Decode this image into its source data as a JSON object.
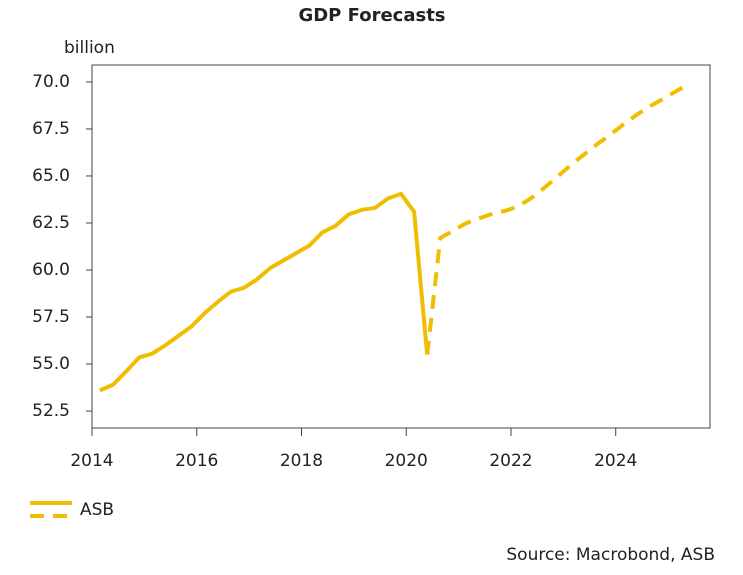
{
  "chart_data": {
    "type": "line",
    "title": "GDP Forecasts",
    "y_unit": "billion",
    "source": "Source: Macrobond, ASB",
    "x": [
      2014.15,
      2014.4,
      2014.65,
      2014.9,
      2015.15,
      2015.4,
      2015.65,
      2015.9,
      2016.15,
      2016.4,
      2016.65,
      2016.9,
      2017.15,
      2017.4,
      2017.65,
      2017.9,
      2018.15,
      2018.4,
      2018.65,
      2018.9,
      2019.15,
      2019.4,
      2019.65,
      2019.9,
      2020.15,
      2020.4,
      2020.65,
      2020.9,
      2021.15,
      2021.4,
      2021.65,
      2021.9,
      2022.15,
      2022.4,
      2022.65,
      2022.9,
      2023.15,
      2023.4,
      2023.65,
      2023.9,
      2024.15,
      2024.4,
      2024.65,
      2024.9,
      2025.15,
      2025.4
    ],
    "series": [
      {
        "name": "ASB",
        "color": "#f0be00",
        "values": [
          53.6,
          53.9,
          54.6,
          55.35,
          55.55,
          56.0,
          56.5,
          57.0,
          57.7,
          58.3,
          58.85,
          59.05,
          59.5,
          60.1,
          60.5,
          60.9,
          61.3,
          62.0,
          62.35,
          62.95,
          63.2,
          63.3,
          63.8,
          64.05,
          63.1,
          55.5,
          null,
          null,
          null,
          null,
          null,
          null,
          null,
          null,
          null,
          null,
          null,
          null,
          null,
          null,
          null,
          null,
          null,
          null,
          null,
          null
        ]
      },
      {
        "color": "#f0be00",
        "dashed": true,
        "values": [
          null,
          null,
          null,
          null,
          null,
          null,
          null,
          null,
          null,
          null,
          null,
          null,
          null,
          null,
          null,
          null,
          null,
          null,
          null,
          null,
          null,
          null,
          null,
          null,
          null,
          55.5,
          61.7,
          62.1,
          62.5,
          62.75,
          63.0,
          63.15,
          63.4,
          63.85,
          64.4,
          65.0,
          65.6,
          66.15,
          66.7,
          67.2,
          67.75,
          68.25,
          68.7,
          69.1,
          69.5,
          69.9
        ]
      }
    ],
    "xlim": [
      2014,
      2025.8
    ],
    "xticks": [
      2014,
      2016,
      2018,
      2020,
      2022,
      2024
    ],
    "ylim": [
      51.6,
      70.9
    ],
    "yticks": [
      52.5,
      {
        "value": 55,
        "label": "55.0"
      },
      57.5,
      {
        "value": 60,
        "label": "60.0"
      },
      62.5,
      {
        "value": 65,
        "label": "65.0"
      },
      67.5,
      {
        "value": 70,
        "label": "70.0"
      }
    ],
    "grid": false
  }
}
